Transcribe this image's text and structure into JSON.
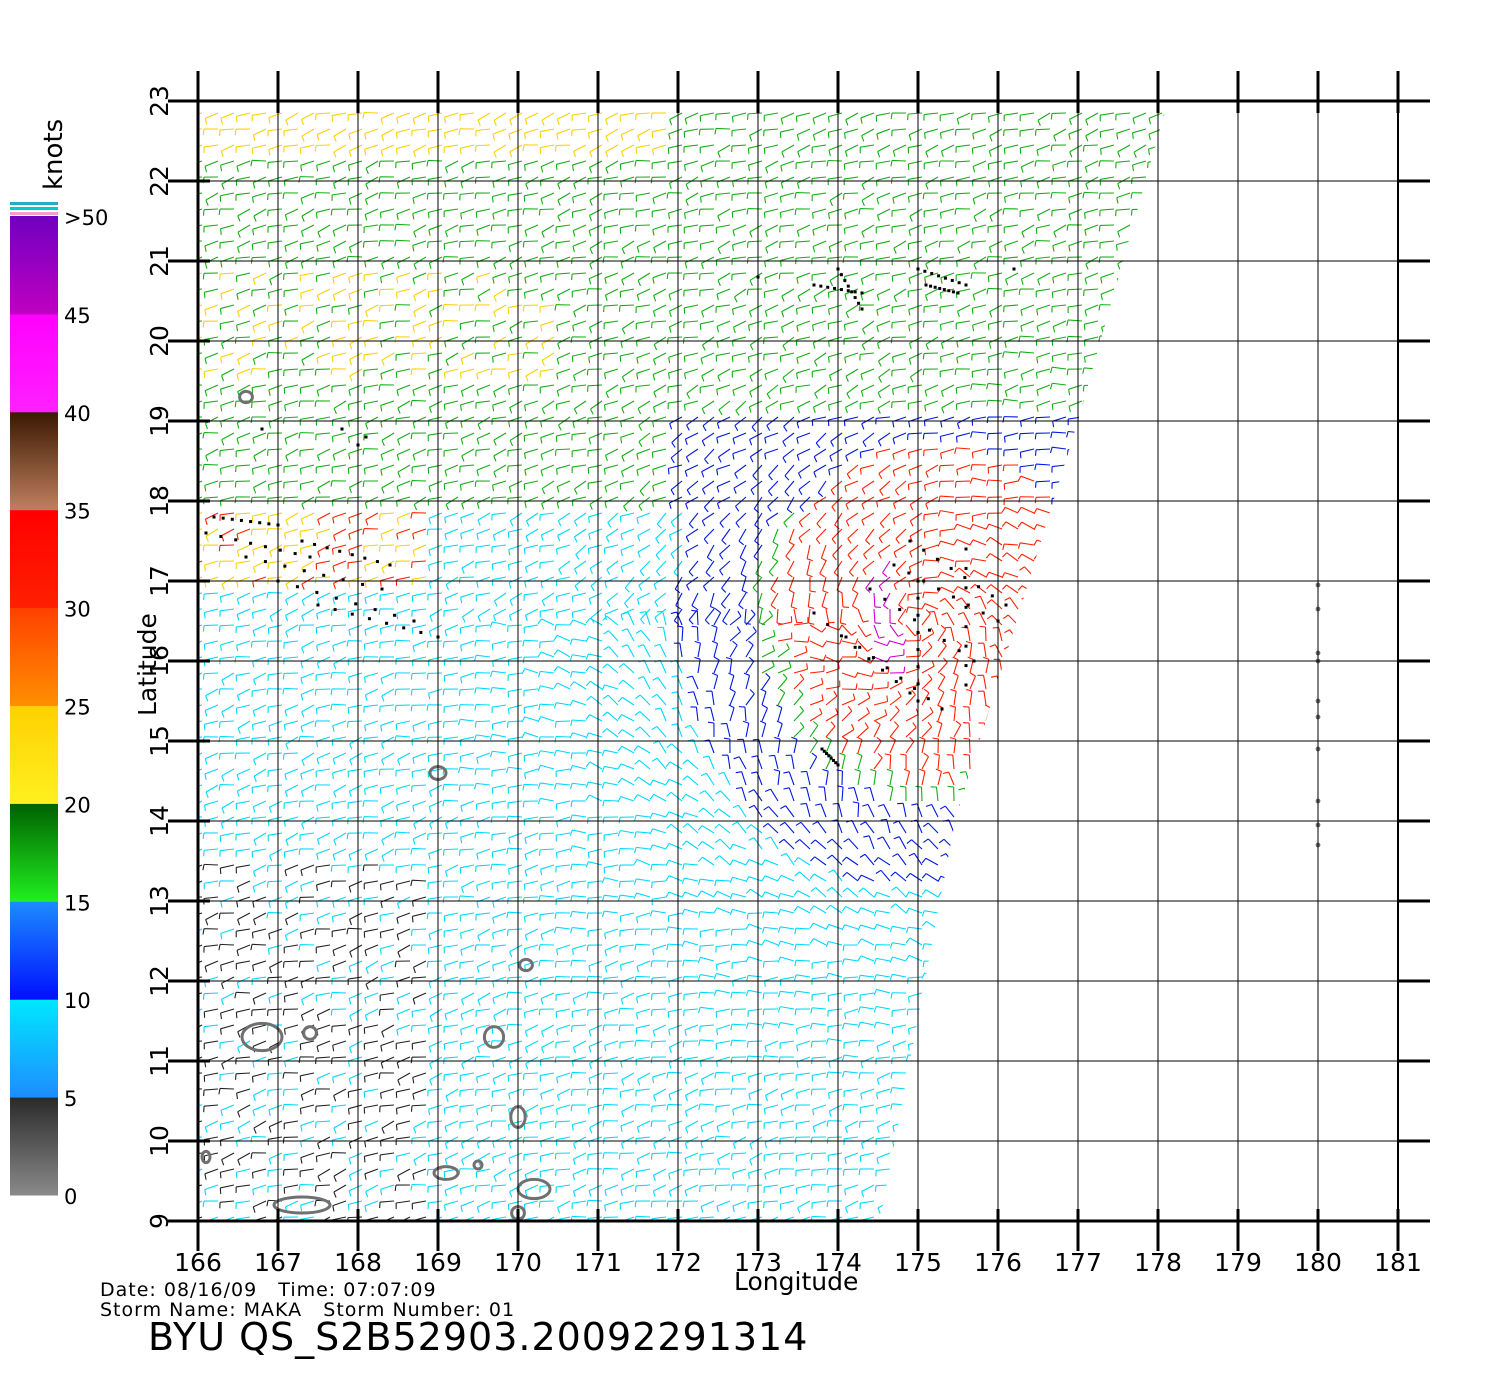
{
  "colorbar": {
    "unit_label": "knots",
    "segments": [
      {
        "from": 0,
        "to": 5,
        "color_top": "#2a2a2a",
        "color_bottom": "#8a8a8a"
      },
      {
        "from": 5,
        "to": 10,
        "color_top": "#00e8ff",
        "color_bottom": "#1e8cff"
      },
      {
        "from": 10,
        "to": 15,
        "color_top": "#1e8cff",
        "color_bottom": "#0010ff"
      },
      {
        "from": 15,
        "to": 20,
        "color_top": "#006000",
        "color_bottom": "#20f020"
      },
      {
        "from": 20,
        "to": 25,
        "color_top": "#ffd000",
        "color_bottom": "#fff020"
      },
      {
        "from": 25,
        "to": 30,
        "color_top": "#ff4000",
        "color_bottom": "#ff9000"
      },
      {
        "from": 30,
        "to": 35,
        "color_top": "#ff0000",
        "color_bottom": "#ff2000"
      },
      {
        "from": 35,
        "to": 40,
        "color_top": "#3a1800",
        "color_bottom": "#c08060"
      },
      {
        "from": 40,
        "to": 45,
        "color_top": "#ff00ff",
        "color_bottom": "#ff20ff"
      },
      {
        "from": 45,
        "to": 50,
        "color_top": "#7000c0",
        "color_bottom": "#c000c0"
      }
    ],
    "tick_labels": [
      "0",
      "5",
      "10",
      "15",
      "20",
      "25",
      "30",
      "35",
      "40",
      "45",
      ">50"
    ]
  },
  "map": {
    "xlabel": "Longitude",
    "ylabel": "Latitude",
    "lon_ticks": [
      "166",
      "167",
      "168",
      "169",
      "170",
      "171",
      "172",
      "173",
      "174",
      "175",
      "176",
      "177",
      "178",
      "179",
      "180",
      "181"
    ],
    "lat_ticks": [
      "9",
      "10",
      "11",
      "12",
      "13",
      "14",
      "15",
      "16",
      "17",
      "18",
      "19",
      "20",
      "21",
      "22",
      "23"
    ],
    "lon_range": [
      166,
      181.4
    ],
    "lat_range": [
      9,
      23
    ],
    "wind_field_colors": {
      "calm": "#222222",
      "light": "#00d8ff",
      "moderate": "#0018e0",
      "fresh": "#10b010",
      "strong": "#ffd000",
      "gale": "#ff2000",
      "storm": "#d000d0",
      "rain_flag": "#000000",
      "land": "#707070"
    },
    "marker_longitude": 180
  },
  "footer": {
    "date_line": "Date: 08/16/09   Time: 07:07:09",
    "storm_line": "Storm Name: MAKA   Storm Number: 01",
    "file_id": "BYU QS_S2B52903.20092291314"
  }
}
